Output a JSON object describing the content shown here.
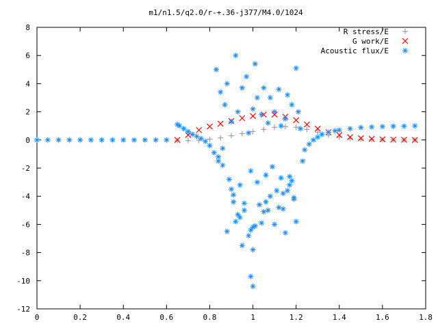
{
  "chart_data": {
    "type": "scatter",
    "title": "m1/n1.5/q2.0/r-+.36-j377/M4.0/1024",
    "xlabel": "",
    "ylabel": "",
    "xlim": [
      0,
      1.8
    ],
    "ylim": [
      -12,
      8
    ],
    "x_ticks": [
      "0",
      "0.2",
      "0.4",
      "0.6",
      "0.8",
      "1",
      "1.2",
      "1.4",
      "1.6",
      "1.8"
    ],
    "y_ticks": [
      "8",
      "6",
      "4",
      "2",
      "0",
      "-2",
      "-4",
      "-6",
      "-8",
      "-10",
      "-12"
    ],
    "grid": false,
    "legend_position": "top-right",
    "series": [
      {
        "name": "R stress/E",
        "color": "#a0a0a0",
        "marker": "plus",
        "x": [
          0.65,
          0.7,
          0.75,
          0.8,
          0.85,
          0.9,
          0.95,
          1.0,
          1.05,
          1.1,
          1.15,
          1.2,
          1.25,
          1.3,
          1.35,
          1.4,
          1.45,
          1.5,
          1.55,
          1.6,
          1.65,
          1.7,
          1.75
        ],
        "y": [
          -0.05,
          -0.05,
          -0.02,
          0.05,
          0.15,
          0.3,
          0.45,
          0.6,
          0.75,
          0.9,
          0.95,
          0.9,
          0.75,
          0.55,
          0.35,
          0.2,
          0.1,
          0.05,
          0.02,
          0.01,
          0.0,
          0.0,
          0.0
        ]
      },
      {
        "name": "G work/E",
        "color": "#ff0000",
        "marker": "cross",
        "x": [
          0.65,
          0.7,
          0.75,
          0.8,
          0.85,
          0.9,
          0.95,
          1.0,
          1.05,
          1.1,
          1.15,
          1.2,
          1.25,
          1.3,
          1.35,
          1.4,
          1.45,
          1.5,
          1.55,
          1.6,
          1.65,
          1.7,
          1.75
        ],
        "y": [
          0.0,
          0.35,
          0.7,
          0.95,
          1.15,
          1.35,
          1.55,
          1.7,
          1.8,
          1.8,
          1.65,
          1.4,
          1.1,
          0.8,
          0.55,
          0.35,
          0.2,
          0.12,
          0.07,
          0.04,
          0.02,
          0.01,
          0.0
        ]
      },
      {
        "name": "Acoustic flux/E",
        "color": "#1e90ff",
        "marker": "star",
        "x": [
          0.0,
          0.05,
          0.1,
          0.15,
          0.2,
          0.25,
          0.3,
          0.35,
          0.4,
          0.45,
          0.5,
          0.55,
          0.6,
          0.65,
          0.66,
          0.68,
          0.7,
          0.72,
          0.74,
          0.76,
          0.78,
          0.8,
          0.82,
          0.84,
          1.24,
          1.26,
          1.28,
          1.3,
          1.32,
          1.35,
          1.38,
          1.4,
          1.45,
          1.5,
          1.55,
          1.6,
          1.65,
          1.7,
          1.75,
          0.83,
          0.85,
          0.87,
          0.88,
          0.9,
          0.92,
          0.93,
          0.95,
          0.97,
          0.98,
          1.0,
          1.01,
          1.02,
          1.04,
          1.05,
          1.07,
          1.08,
          1.1,
          1.12,
          1.13,
          1.15,
          1.16,
          1.18,
          1.2,
          1.21,
          1.22,
          0.84,
          0.86,
          0.89,
          0.91,
          0.94,
          0.96,
          0.99,
          1.03,
          1.06,
          1.09,
          1.11,
          1.14,
          1.17,
          1.19,
          1.23,
          0.88,
          0.92,
          0.95,
          1.0,
          1.05,
          1.1,
          1.15,
          1.2,
          0.9,
          0.96,
          1.02,
          1.08,
          1.14,
          1.18,
          0.93,
          0.98,
          1.04,
          1.12,
          1.17,
          0.86,
          0.91,
          0.99,
          1.06,
          1.13,
          1.19,
          0.94,
          1.01,
          1.07,
          1.16,
          1.0,
          1.0,
          0.99
        ],
        "y": [
          0.0,
          0.0,
          0.0,
          0.0,
          0.0,
          0.0,
          0.0,
          0.0,
          0.0,
          0.0,
          0.0,
          0.0,
          0.0,
          1.1,
          1.0,
          0.8,
          0.6,
          0.4,
          0.25,
          0.1,
          -0.1,
          -0.4,
          -0.9,
          -1.5,
          -0.7,
          -0.3,
          0.0,
          0.2,
          0.4,
          0.55,
          0.65,
          0.7,
          0.8,
          0.88,
          0.92,
          0.95,
          0.97,
          0.98,
          1.0,
          5.0,
          3.4,
          2.5,
          4.0,
          1.3,
          6.0,
          2.0,
          3.7,
          4.5,
          0.5,
          2.2,
          5.4,
          3.0,
          1.8,
          3.7,
          1.2,
          3.0,
          2.0,
          3.6,
          1.0,
          1.5,
          3.2,
          2.5,
          5.1,
          2.0,
          0.8,
          -1.2,
          -0.6,
          -2.8,
          -4.4,
          -3.2,
          -5.0,
          -2.2,
          -4.6,
          -2.5,
          -1.9,
          -3.6,
          -4.9,
          -2.6,
          -4.2,
          -1.5,
          -6.5,
          -5.8,
          -7.5,
          -6.2,
          -5.1,
          -6.0,
          -6.6,
          -5.8,
          -3.5,
          -4.5,
          -3.0,
          -4.0,
          -3.8,
          -2.9,
          -5.3,
          -6.8,
          -5.9,
          -4.8,
          -3.2,
          -1.8,
          -3.9,
          -6.4,
          -4.4,
          -2.7,
          -4.1,
          -5.5,
          -6.1,
          -5.0,
          -3.6,
          -7.8,
          -10.4,
          -9.7
        ]
      }
    ]
  }
}
